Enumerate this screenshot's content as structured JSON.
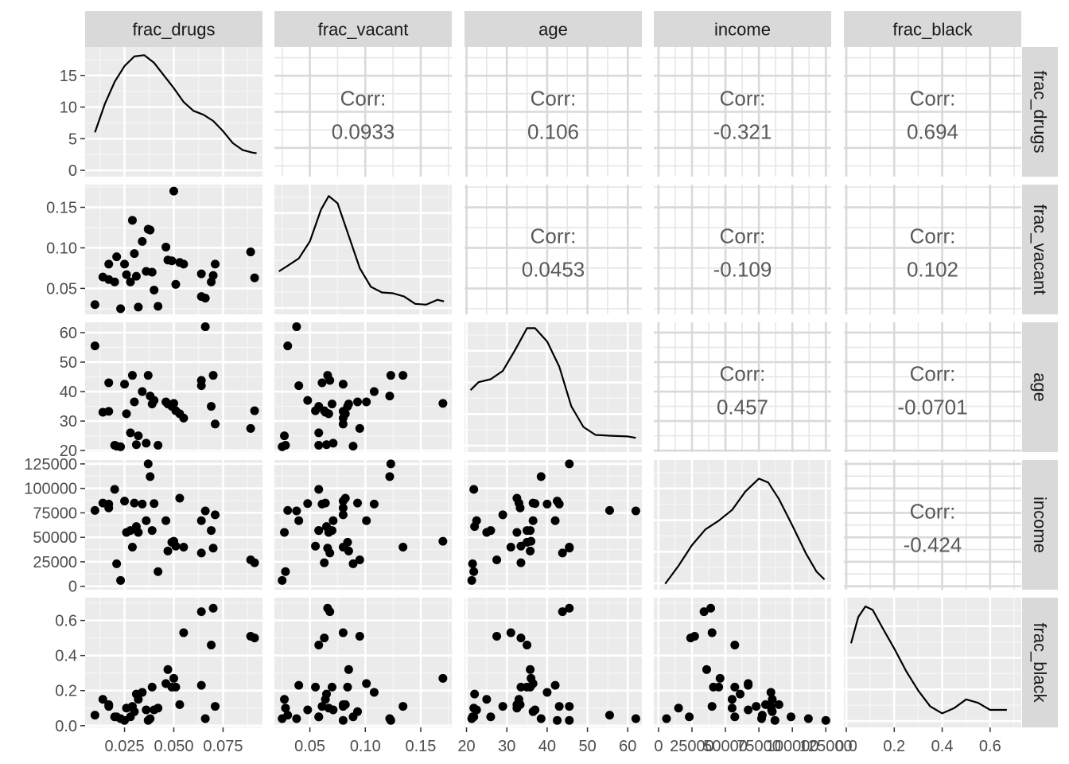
{
  "variables": [
    "frac_drugs",
    "frac_vacant",
    "age",
    "income",
    "frac_black"
  ],
  "colors": {
    "panel_bg": "#ebebeb",
    "grid_major": "#ffffff",
    "strip_bg": "#d9d9d9",
    "strip_text": "#1a1a1a",
    "axis_text": "#4d4d4d",
    "corr_text": "#595959",
    "point": "#000000",
    "tick": "#333333"
  },
  "chart_data": {
    "type": "scatter",
    "subtype": "pairs-matrix",
    "title": "",
    "axes": {
      "frac_drugs": {
        "range": [
          0.005,
          0.095
        ],
        "ticks": [
          0.025,
          0.05,
          0.075
        ],
        "tick_labels": [
          "0.025",
          "0.050",
          "0.075"
        ]
      },
      "frac_vacant": {
        "range": [
          0.018,
          0.178
        ],
        "ticks": [
          0.05,
          0.1,
          0.15
        ],
        "tick_labels": [
          "0.05",
          "0.10",
          "0.15"
        ]
      },
      "age": {
        "range": [
          19.5,
          63.5
        ],
        "ticks": [
          20,
          30,
          40,
          50,
          60
        ],
        "tick_labels": [
          "20",
          "30",
          "40",
          "50",
          "60"
        ]
      },
      "income": {
        "range": [
          -3500,
          129000
        ],
        "ticks": [
          0,
          25000,
          50000,
          75000,
          100000,
          125000
        ],
        "tick_labels": [
          "0",
          "25000",
          "50000",
          "75000",
          "100000",
          "125000"
        ]
      },
      "frac_black": {
        "range": [
          -0.01,
          0.73
        ],
        "ticks": [
          0.0,
          0.2,
          0.4,
          0.6
        ],
        "tick_labels": [
          "0.0",
          "0.2",
          "0.4",
          "0.6"
        ]
      }
    },
    "density_axis": {
      "range": [
        -1,
        19.5
      ],
      "ticks": [
        0,
        5,
        10,
        15
      ],
      "tick_labels": [
        "0",
        "5",
        "10",
        "15"
      ]
    },
    "correlation_label": "Corr:",
    "correlations": [
      {
        "row": "frac_drugs",
        "col": "frac_vacant",
        "value": "0.0933"
      },
      {
        "row": "frac_drugs",
        "col": "age",
        "value": "0.106"
      },
      {
        "row": "frac_drugs",
        "col": "income",
        "value": "-0.321"
      },
      {
        "row": "frac_drugs",
        "col": "frac_black",
        "value": "0.694"
      },
      {
        "row": "frac_vacant",
        "col": "age",
        "value": "0.0453"
      },
      {
        "row": "frac_vacant",
        "col": "income",
        "value": "-0.109"
      },
      {
        "row": "frac_vacant",
        "col": "frac_black",
        "value": "0.102"
      },
      {
        "row": "age",
        "col": "income",
        "value": "0.457"
      },
      {
        "row": "age",
        "col": "frac_black",
        "value": "-0.0701"
      },
      {
        "row": "income",
        "col": "frac_black",
        "value": "-0.424"
      }
    ],
    "densities": {
      "frac_drugs": [
        [
          0.01,
          6.0
        ],
        [
          0.015,
          10.5
        ],
        [
          0.02,
          14.0
        ],
        [
          0.025,
          16.5
        ],
        [
          0.03,
          18.0
        ],
        [
          0.035,
          18.2
        ],
        [
          0.04,
          17.0
        ],
        [
          0.045,
          15.0
        ],
        [
          0.05,
          13.0
        ],
        [
          0.055,
          10.8
        ],
        [
          0.06,
          9.4
        ],
        [
          0.065,
          8.8
        ],
        [
          0.07,
          7.8
        ],
        [
          0.075,
          6.2
        ],
        [
          0.08,
          4.3
        ],
        [
          0.085,
          3.2
        ],
        [
          0.09,
          2.8
        ],
        [
          0.092,
          2.7
        ]
      ],
      "frac_vacant": [
        [
          0.022,
          0.071
        ],
        [
          0.03,
          0.078
        ],
        [
          0.04,
          0.087
        ],
        [
          0.05,
          0.108
        ],
        [
          0.06,
          0.147
        ],
        [
          0.067,
          0.164
        ],
        [
          0.075,
          0.155
        ],
        [
          0.085,
          0.115
        ],
        [
          0.095,
          0.075
        ],
        [
          0.105,
          0.052
        ],
        [
          0.115,
          0.045
        ],
        [
          0.125,
          0.044
        ],
        [
          0.135,
          0.04
        ],
        [
          0.145,
          0.031
        ],
        [
          0.155,
          0.03
        ],
        [
          0.165,
          0.036
        ],
        [
          0.171,
          0.034
        ]
      ],
      "age": [
        [
          21,
          40.5
        ],
        [
          23,
          43.2
        ],
        [
          26,
          44.2
        ],
        [
          29,
          47.0
        ],
        [
          32,
          54.0
        ],
        [
          35,
          61.5
        ],
        [
          37,
          61.5
        ],
        [
          40,
          57.0
        ],
        [
          43,
          48.5
        ],
        [
          46,
          35.0
        ],
        [
          49,
          28.0
        ],
        [
          52,
          25.3
        ],
        [
          56,
          25.0
        ],
        [
          60,
          24.8
        ],
        [
          62,
          24.3
        ]
      ],
      "income": [
        [
          5000,
          2500
        ],
        [
          15000,
          21000
        ],
        [
          25000,
          42000
        ],
        [
          35000,
          58000
        ],
        [
          45000,
          67000
        ],
        [
          55000,
          78000
        ],
        [
          65000,
          97000
        ],
        [
          75000,
          110000
        ],
        [
          82000,
          106000
        ],
        [
          90000,
          89000
        ],
        [
          100000,
          62000
        ],
        [
          110000,
          34000
        ],
        [
          118000,
          15000
        ],
        [
          124000,
          7000
        ]
      ],
      "frac_black": [
        [
          0.02,
          0.47
        ],
        [
          0.05,
          0.62
        ],
        [
          0.08,
          0.68
        ],
        [
          0.11,
          0.66
        ],
        [
          0.15,
          0.56
        ],
        [
          0.2,
          0.44
        ],
        [
          0.25,
          0.31
        ],
        [
          0.3,
          0.2
        ],
        [
          0.35,
          0.11
        ],
        [
          0.4,
          0.07
        ],
        [
          0.45,
          0.1
        ],
        [
          0.5,
          0.15
        ],
        [
          0.55,
          0.13
        ],
        [
          0.6,
          0.09
        ],
        [
          0.67,
          0.09
        ]
      ]
    },
    "points": [
      {
        "frac_drugs": 0.01,
        "frac_vacant": 0.03,
        "age": 55.5,
        "income": 77500,
        "frac_black": 0.06
      },
      {
        "frac_drugs": 0.014,
        "frac_vacant": 0.064,
        "age": 33.0,
        "income": 85000,
        "frac_black": 0.15
      },
      {
        "frac_drugs": 0.017,
        "frac_vacant": 0.08,
        "age": 33.3,
        "income": 80000,
        "frac_black": 0.12
      },
      {
        "frac_drugs": 0.017,
        "frac_vacant": 0.061,
        "age": 43.0,
        "income": 84000,
        "frac_black": 0.11
      },
      {
        "frac_drugs": 0.02,
        "frac_vacant": 0.058,
        "age": 21.8,
        "income": 99000,
        "frac_black": 0.05
      },
      {
        "frac_drugs": 0.021,
        "frac_vacant": 0.089,
        "age": 21.5,
        "income": 23000,
        "frac_black": 0.05
      },
      {
        "frac_drugs": 0.023,
        "frac_vacant": 0.025,
        "age": 21.3,
        "income": 6000,
        "frac_black": 0.04
      },
      {
        "frac_drugs": 0.025,
        "frac_vacant": 0.08,
        "age": 42.5,
        "income": 87000,
        "frac_black": 0.03
      },
      {
        "frac_drugs": 0.026,
        "frac_vacant": 0.067,
        "age": 32.5,
        "income": 55000,
        "frac_black": 0.1
      },
      {
        "frac_drugs": 0.028,
        "frac_vacant": 0.058,
        "age": 26.0,
        "income": 57000,
        "frac_black": 0.05
      },
      {
        "frac_drugs": 0.029,
        "frac_vacant": 0.134,
        "age": 45.5,
        "income": 40000,
        "frac_black": 0.11
      },
      {
        "frac_drugs": 0.03,
        "frac_vacant": 0.093,
        "age": 36.5,
        "income": 85000,
        "frac_black": 0.08
      },
      {
        "frac_drugs": 0.031,
        "frac_vacant": 0.065,
        "age": 22.0,
        "income": 61000,
        "frac_black": 0.18
      },
      {
        "frac_drugs": 0.032,
        "frac_vacant": 0.027,
        "age": 25.0,
        "income": 55000,
        "frac_black": 0.15
      },
      {
        "frac_drugs": 0.034,
        "frac_vacant": 0.108,
        "age": 40.0,
        "income": 84000,
        "frac_black": 0.19
      },
      {
        "frac_drugs": 0.036,
        "frac_vacant": 0.071,
        "age": 22.5,
        "income": 67000,
        "frac_black": 0.09
      },
      {
        "frac_drugs": 0.037,
        "frac_vacant": 0.123,
        "age": 45.5,
        "income": 125000,
        "frac_black": 0.03
      },
      {
        "frac_drugs": 0.038,
        "frac_vacant": 0.122,
        "age": 38.5,
        "income": 112000,
        "frac_black": 0.04
      },
      {
        "frac_drugs": 0.039,
        "frac_vacant": 0.07,
        "age": 35.8,
        "income": 57000,
        "frac_black": 0.22
      },
      {
        "frac_drugs": 0.04,
        "frac_vacant": 0.048,
        "age": 37.0,
        "income": 84500,
        "frac_black": 0.09
      },
      {
        "frac_drugs": 0.042,
        "frac_vacant": 0.028,
        "age": 21.8,
        "income": 15000,
        "frac_black": 0.1
      },
      {
        "frac_drugs": 0.046,
        "frac_vacant": 0.101,
        "age": 36.5,
        "income": 67000,
        "frac_black": 0.24
      },
      {
        "frac_drugs": 0.047,
        "frac_vacant": 0.085,
        "age": 35.8,
        "income": 36000,
        "frac_black": 0.32
      },
      {
        "frac_drugs": 0.049,
        "frac_vacant": 0.084,
        "age": 35.0,
        "income": 45000,
        "frac_black": 0.22
      },
      {
        "frac_drugs": 0.05,
        "frac_vacant": 0.17,
        "age": 36.0,
        "income": 46000,
        "frac_black": 0.27
      },
      {
        "frac_drugs": 0.051,
        "frac_vacant": 0.055,
        "age": 33.5,
        "income": 41000,
        "frac_black": 0.22
      },
      {
        "frac_drugs": 0.053,
        "frac_vacant": 0.082,
        "age": 32.5,
        "income": 90000,
        "frac_black": 0.12
      },
      {
        "frac_drugs": 0.055,
        "frac_vacant": 0.08,
        "age": 31.0,
        "income": 40000,
        "frac_black": 0.53
      },
      {
        "frac_drugs": 0.064,
        "frac_vacant": 0.04,
        "age": 42.0,
        "income": 67000,
        "frac_black": 0.23
      },
      {
        "frac_drugs": 0.064,
        "frac_vacant": 0.068,
        "age": 43.8,
        "income": 34000,
        "frac_black": 0.65
      },
      {
        "frac_drugs": 0.066,
        "frac_vacant": 0.038,
        "age": 62.0,
        "income": 77000,
        "frac_black": 0.04
      },
      {
        "frac_drugs": 0.069,
        "frac_vacant": 0.058,
        "age": 35.0,
        "income": 57000,
        "frac_black": 0.46
      },
      {
        "frac_drugs": 0.07,
        "frac_vacant": 0.066,
        "age": 45.5,
        "income": 39000,
        "frac_black": 0.67
      },
      {
        "frac_drugs": 0.071,
        "frac_vacant": 0.08,
        "age": 29.0,
        "income": 73000,
        "frac_black": 0.11
      },
      {
        "frac_drugs": 0.089,
        "frac_vacant": 0.095,
        "age": 27.5,
        "income": 27000,
        "frac_black": 0.51
      },
      {
        "frac_drugs": 0.091,
        "frac_vacant": 0.063,
        "age": 33.5,
        "income": 24000,
        "frac_black": 0.5
      }
    ]
  }
}
